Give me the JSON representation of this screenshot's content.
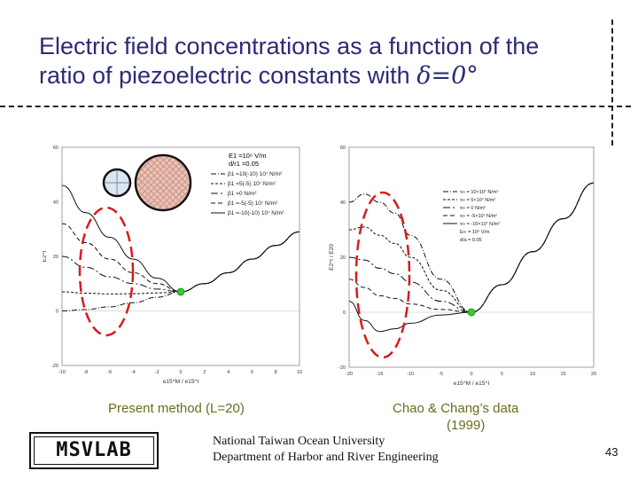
{
  "title": {
    "line1": "Electric field concentrations as a function of the",
    "line2": "ratio of piezoelectric constants with",
    "symbol": "δ=0°"
  },
  "chart_data": [
    {
      "type": "line",
      "id": "present",
      "xlim": [
        -10,
        10
      ],
      "ylim": [
        -20,
        60
      ],
      "xticks": [
        "-10",
        "-8",
        "-6",
        "-4",
        "-2",
        "0",
        "2",
        "4",
        "6",
        "8",
        "10"
      ],
      "yticks": [
        "60",
        "40",
        "20",
        "0",
        "-20"
      ],
      "xlabel": "e15^M / e15^I",
      "ylabel": "E2^I",
      "legend_header": [
        "E1 =10⁶ V/m",
        "d/r1 =0.05"
      ],
      "legend_entries": [
        "β1 =10(-10) 10⁷ N/m²",
        "β1 =5(-5) 10⁷ N/m²",
        "β1 =0 N/m²",
        "β1 =-5(-5) 10⁷ N/m²",
        "β1 =-10(-10) 10⁷ N/m²"
      ],
      "legend_placement": "top-right",
      "marker_x": 0,
      "marker_y": 7,
      "series": [
        {
          "x": [
            -10,
            -8,
            -6,
            -4,
            -2,
            0,
            2,
            4,
            6,
            8,
            10
          ],
          "y": [
            0,
            0.5,
            1.5,
            3,
            5,
            7,
            10,
            14,
            19,
            24,
            29
          ]
        },
        {
          "x": [
            -10,
            -8,
            -6,
            -4,
            -2,
            0,
            2,
            4,
            6,
            8,
            10
          ],
          "y": [
            7,
            6.5,
            6.2,
            6.3,
            6.6,
            7,
            10,
            14,
            19,
            24,
            29
          ]
        },
        {
          "x": [
            -10,
            -8,
            -6,
            -4,
            -2,
            0,
            2,
            4,
            6,
            8,
            10
          ],
          "y": [
            20,
            16,
            12.5,
            10,
            8,
            7,
            10,
            14,
            19,
            24,
            29
          ]
        },
        {
          "x": [
            -10,
            -8,
            -6,
            -4,
            -2,
            0,
            2,
            4,
            6,
            8,
            10
          ],
          "y": [
            32,
            25,
            19,
            14,
            10,
            7,
            10,
            14,
            19,
            24,
            29
          ]
        },
        {
          "x": [
            -10,
            -8,
            -6,
            -4,
            -2,
            0,
            2,
            4,
            6,
            8,
            10
          ],
          "y": [
            46,
            36,
            27,
            19,
            12,
            7,
            10,
            14,
            19,
            24,
            29
          ]
        }
      ]
    },
    {
      "type": "line",
      "id": "chao",
      "xlim": [
        -20,
        20
      ],
      "ylim": [
        -20,
        60
      ],
      "xticks": [
        "-20",
        "-15",
        "-10",
        "-5",
        "0",
        "5",
        "10",
        "15",
        "20"
      ],
      "yticks": [
        "60",
        "40",
        "20",
        "0",
        "-20"
      ],
      "xlabel": "e15^M / e15^I",
      "ylabel": "E2^I / E20",
      "legend_header": [],
      "legend_entries": [
        "τ∞ = 10×10⁷ N/m²",
        "τ∞ = 5×10⁷ N/m²",
        "τ∞ = 0 N/m²",
        "τ∞ = -5×10⁷ N/m²",
        "τ∞ = -10×10⁷ N/m²",
        "E∞ = 10⁶ V/m",
        "d/a = 0.05"
      ],
      "legend_placement": "top-right",
      "marker_x": 0,
      "marker_y": 0,
      "series": [
        {
          "x": [
            -20,
            -17.5,
            -15,
            -12.5,
            -10,
            -5,
            0,
            5,
            10,
            15,
            20
          ],
          "y": [
            40,
            43,
            40,
            36,
            28,
            12,
            0,
            10,
            22,
            34,
            47
          ]
        },
        {
          "x": [
            -20,
            -17.5,
            -15,
            -12.5,
            -10,
            -5,
            0,
            5,
            10,
            15,
            20
          ],
          "y": [
            30,
            31,
            28,
            25,
            20,
            8,
            0,
            10,
            22,
            34,
            47
          ]
        },
        {
          "x": [
            -20,
            -17.5,
            -15,
            -12.5,
            -10,
            -5,
            0,
            5,
            10,
            15,
            20
          ],
          "y": [
            20,
            19,
            16,
            14,
            11,
            4,
            0,
            10,
            22,
            34,
            47
          ]
        },
        {
          "x": [
            -20,
            -17.5,
            -15,
            -12.5,
            -10,
            -5,
            0,
            5,
            10,
            15,
            20
          ],
          "y": [
            12,
            9,
            6,
            5,
            3,
            1,
            0,
            10,
            22,
            34,
            47
          ]
        },
        {
          "x": [
            -20,
            -17.5,
            -15,
            -12.5,
            -10,
            -5,
            0,
            5,
            10,
            15,
            20
          ],
          "y": [
            4,
            -3,
            -7,
            -6,
            -4,
            -1,
            0,
            10,
            22,
            34,
            47
          ]
        }
      ]
    }
  ],
  "captions": {
    "left": "Present method (L=20)",
    "right_line1": "Chao & Chang’s data",
    "right_line2": "(1999)"
  },
  "logo": "MSVLAB",
  "footer": {
    "line1": "National Taiwan Ocean University",
    "line2": "Department of Harbor and River Engineering"
  },
  "page_number": "43",
  "colors": {
    "title": "#2b2b78",
    "caption": "#6b6b1e",
    "highlight_ellipse": "#d81b1b",
    "marker": "#33cc33",
    "fiber_fill": "#e8c3b8"
  }
}
